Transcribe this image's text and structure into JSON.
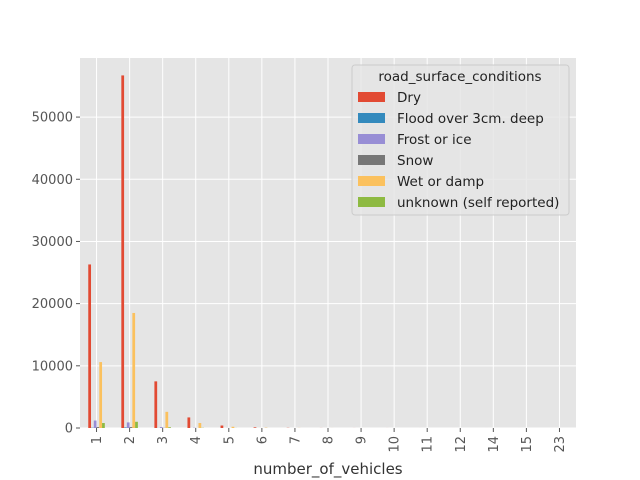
{
  "chart_data": {
    "type": "bar",
    "style": "ggplot",
    "xlabel": "number_of_vehicles",
    "ylabel": "",
    "ylim": [
      0,
      59500
    ],
    "yticks": [
      0,
      10000,
      20000,
      30000,
      40000,
      50000
    ],
    "categories": [
      "1",
      "2",
      "3",
      "4",
      "5",
      "6",
      "7",
      "8",
      "9",
      "10",
      "11",
      "12",
      "14",
      "15",
      "23"
    ],
    "grid": true,
    "legend": {
      "title": "road_surface_conditions",
      "placement": "top-right"
    },
    "series": [
      {
        "name": "Dry",
        "color": "#E24A33",
        "values": [
          26300,
          56700,
          7500,
          1700,
          400,
          100,
          30,
          10,
          5,
          3,
          2,
          1,
          1,
          1,
          1
        ]
      },
      {
        "name": "Flood over 3cm. deep",
        "color": "#348ABD",
        "values": [
          50,
          90,
          15,
          3,
          1,
          0,
          0,
          0,
          0,
          0,
          0,
          0,
          0,
          0,
          0
        ]
      },
      {
        "name": "Frost or ice",
        "color": "#988ED5",
        "values": [
          1200,
          900,
          150,
          40,
          10,
          2,
          0,
          0,
          0,
          0,
          0,
          0,
          0,
          0,
          0
        ]
      },
      {
        "name": "Snow",
        "color": "#777777",
        "values": [
          150,
          150,
          30,
          8,
          2,
          0,
          0,
          0,
          0,
          0,
          0,
          0,
          0,
          0,
          0
        ]
      },
      {
        "name": "Wet or damp",
        "color": "#FBC15E",
        "values": [
          10600,
          18500,
          2600,
          800,
          200,
          50,
          15,
          5,
          2,
          1,
          1,
          0,
          0,
          0,
          0
        ]
      },
      {
        "name": "unknown (self reported)",
        "color": "#8EBA42",
        "values": [
          800,
          1000,
          120,
          30,
          10,
          2,
          0,
          0,
          0,
          0,
          0,
          0,
          0,
          0,
          0
        ]
      }
    ]
  }
}
